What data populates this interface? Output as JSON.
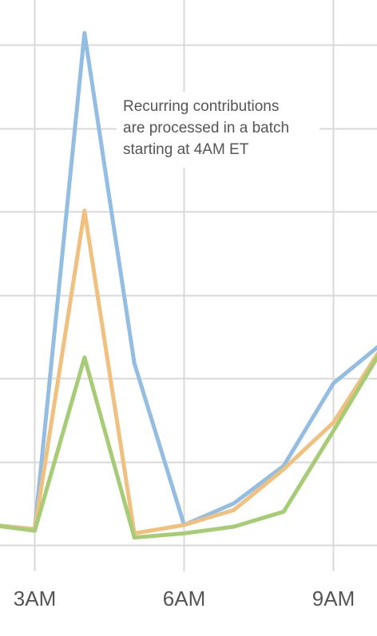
{
  "chart_data": {
    "type": "line",
    "x": [
      2,
      3,
      4,
      5,
      6,
      7,
      8,
      9,
      10
    ],
    "x_ticks": [
      {
        "value": 3,
        "label": "3AM"
      },
      {
        "value": 6,
        "label": "6AM"
      },
      {
        "value": 9,
        "label": "9AM"
      }
    ],
    "xlim": [
      2.3,
      10.9
    ],
    "ylim": [
      0,
      700
    ],
    "y_gridlines": [
      0,
      100,
      200,
      300,
      400,
      500,
      600,
      700
    ],
    "grid": true,
    "series": [
      {
        "color": "#93bde3",
        "values": [
          25,
          19,
          614,
          218,
          24,
          50,
          95,
          194,
          243
        ]
      },
      {
        "color": "#f0c07f",
        "values": [
          25,
          19,
          401,
          14,
          24,
          42,
          91,
          147,
          240
        ]
      },
      {
        "color": "#a6cd75",
        "values": [
          25,
          17,
          225,
          9,
          14,
          22,
          40,
          137,
          237
        ]
      }
    ],
    "annotations": [
      {
        "lines": [
          "Recurring contributions",
          "are processed in a batch",
          "starting at 4AM ET"
        ],
        "x": 4.75,
        "y": 525
      }
    ]
  }
}
